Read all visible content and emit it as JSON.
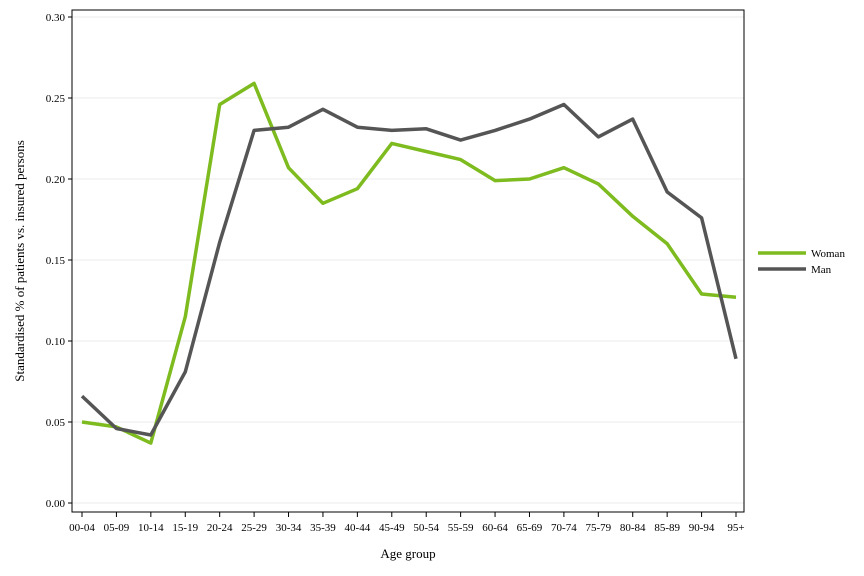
{
  "chart_data": {
    "type": "line",
    "title": "",
    "xlabel": "Age group",
    "ylabel": "Standardised % of patients vs. insured persons",
    "categories": [
      "00-04",
      "05-09",
      "10-14",
      "15-19",
      "20-24",
      "25-29",
      "30-34",
      "35-39",
      "40-44",
      "45-49",
      "50-54",
      "55-59",
      "60-64",
      "65-69",
      "70-74",
      "75-79",
      "80-84",
      "85-89",
      "90-94",
      "95+"
    ],
    "ylim": [
      0,
      0.3
    ],
    "yticks": [
      "0.00",
      "0.05",
      "0.10",
      "0.15",
      "0.20",
      "0.25",
      "0.30"
    ],
    "grid": true,
    "legend_position": "right",
    "series": [
      {
        "name": "Woman",
        "color": "#7dbb1f",
        "values": [
          0.05,
          0.047,
          0.037,
          0.115,
          0.246,
          0.259,
          0.207,
          0.185,
          0.194,
          0.222,
          0.217,
          0.212,
          0.199,
          0.2,
          0.207,
          0.197,
          0.177,
          0.16,
          0.129,
          0.127
        ]
      },
      {
        "name": "Man",
        "color": "#555555",
        "values": [
          0.066,
          0.046,
          0.042,
          0.081,
          0.161,
          0.23,
          0.232,
          0.243,
          0.232,
          0.23,
          0.231,
          0.224,
          0.23,
          0.237,
          0.246,
          0.226,
          0.237,
          0.192,
          0.176,
          0.089
        ]
      }
    ]
  }
}
